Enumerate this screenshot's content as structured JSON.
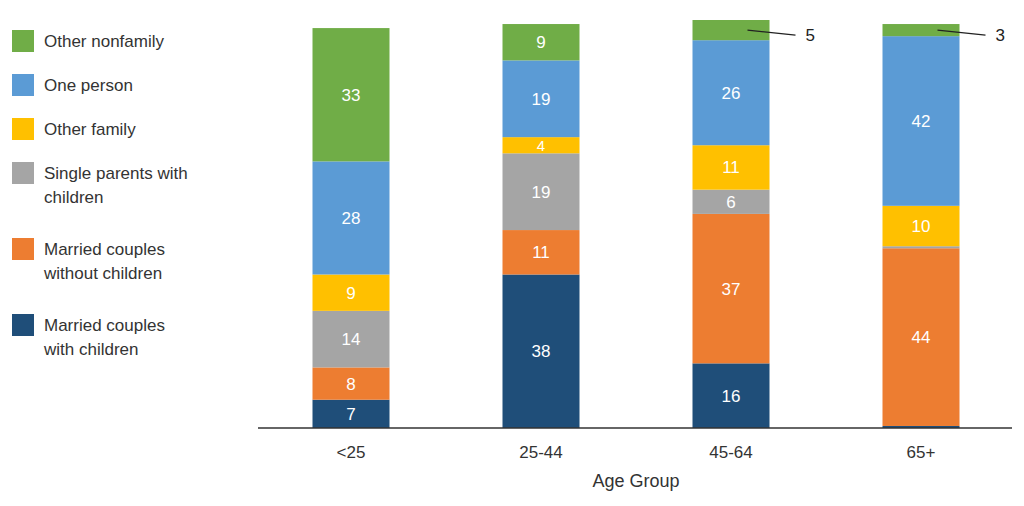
{
  "chart_data": {
    "type": "bar",
    "stacked": true,
    "data_labels": true,
    "tick_labels": "x",
    "legend": "left",
    "x_label": "Age Group",
    "categories": [
      "<25",
      "25-44",
      "45-64",
      "65+"
    ],
    "ylim": [
      0,
      101
    ],
    "series": [
      {
        "name": "Married couples with children",
        "color": "#1f4e79",
        "values": [
          7,
          38,
          16,
          0.5
        ]
      },
      {
        "name": "Married couples without children",
        "color": "#ed7d31",
        "values": [
          8,
          11,
          37,
          44
        ]
      },
      {
        "name": "Single parents with children",
        "color": "#a5a5a5",
        "values": [
          14,
          19,
          6,
          0.5
        ]
      },
      {
        "name": "Other family",
        "color": "#ffc000",
        "values": [
          9,
          4,
          11,
          10
        ]
      },
      {
        "name": "One person",
        "color": "#5b9bd5",
        "values": [
          28,
          19,
          26,
          42
        ]
      },
      {
        "name": "Other nonfamily",
        "color": "#70ad47",
        "values": [
          33,
          9,
          5,
          3
        ]
      }
    ]
  }
}
